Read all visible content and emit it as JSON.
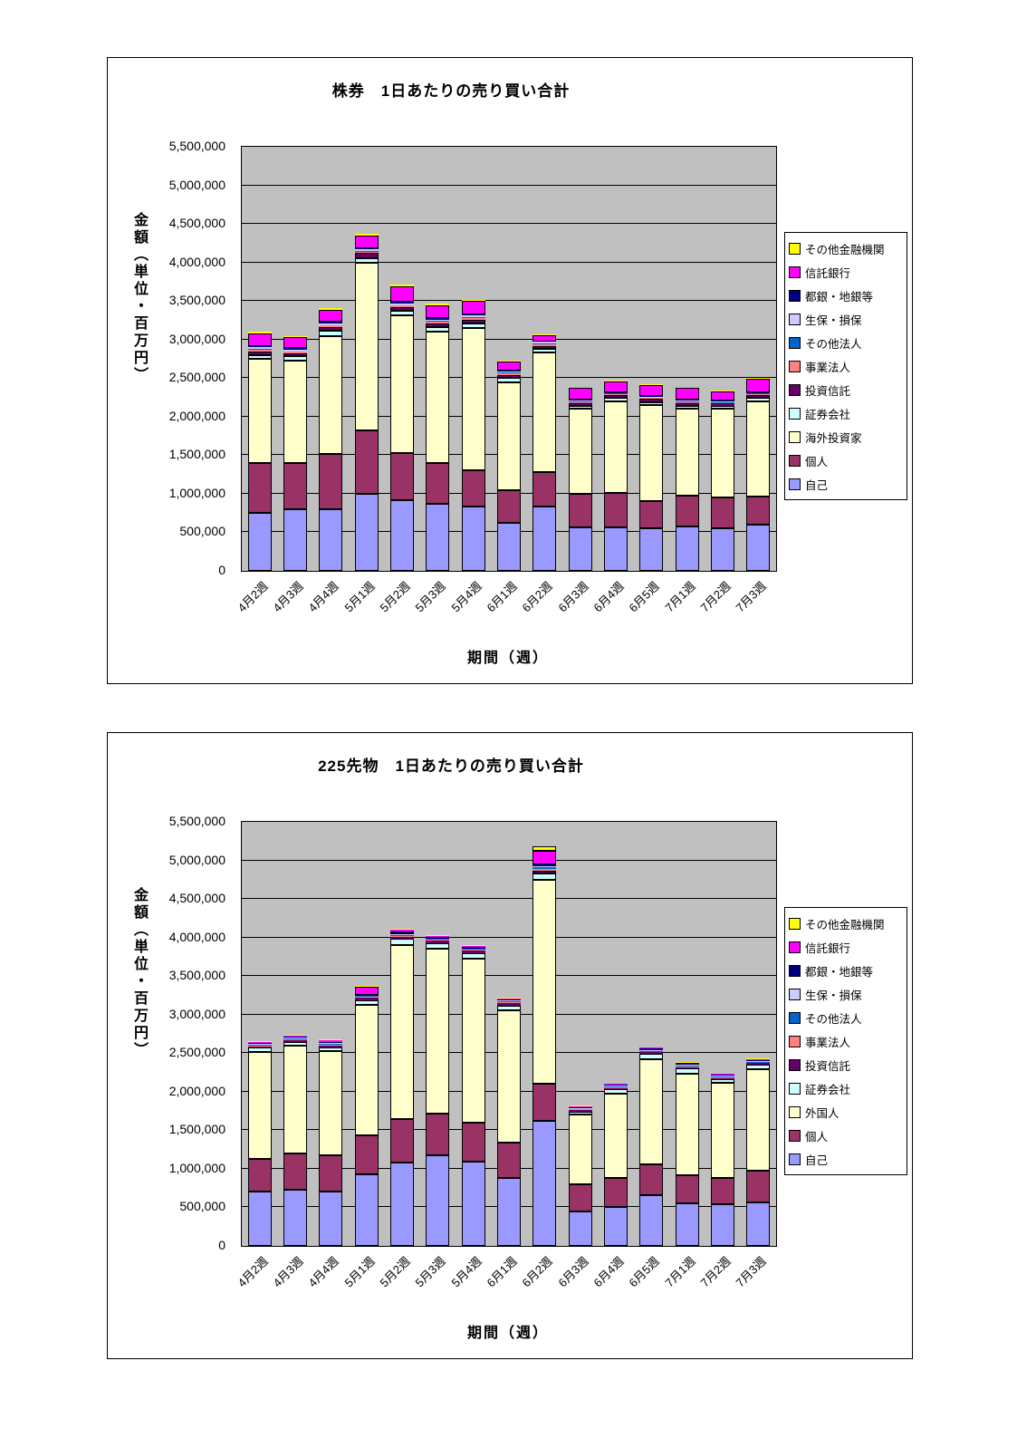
{
  "page": {
    "background": "#FFFFFF"
  },
  "chart_data": [
    {
      "type": "bar",
      "stacked": true,
      "title": "株券　1日あたりの売り買い合計",
      "ylabel": "金額（単位・百万円）",
      "xlabel": "期間（週）",
      "ylim": [
        0,
        5500000
      ],
      "ytick_step": 500000,
      "ytick_labels": [
        "0",
        "500,000",
        "1,000,000",
        "1,500,000",
        "2,000,000",
        "2,500,000",
        "3,000,000",
        "3,500,000",
        "4,000,000",
        "4,500,000",
        "5,000,000",
        "5,500,000"
      ],
      "categories": [
        "4月2週",
        "4月3週",
        "4月4週",
        "5月1週",
        "5月2週",
        "5月3週",
        "5月4週",
        "6月1週",
        "6月2週",
        "6月3週",
        "6月4週",
        "6月5週",
        "7月1週",
        "7月2週",
        "7月3週"
      ],
      "plot_bg": "#C0C0C0",
      "legend_position": "right",
      "series": [
        {
          "name": "自己",
          "color": "#9999FF",
          "values": [
            750000,
            800000,
            800000,
            1000000,
            920000,
            870000,
            830000,
            620000,
            830000,
            570000,
            560000,
            550000,
            580000,
            550000,
            600000
          ]
        },
        {
          "name": "個人",
          "color": "#993366",
          "values": [
            650000,
            600000,
            720000,
            820000,
            610000,
            530000,
            470000,
            430000,
            450000,
            430000,
            450000,
            350000,
            400000,
            400000,
            360000
          ]
        },
        {
          "name": "海外投資家",
          "color": "#FFFFCC",
          "values": [
            1350000,
            1330000,
            1530000,
            2180000,
            1780000,
            1700000,
            1850000,
            1400000,
            1550000,
            1100000,
            1190000,
            1250000,
            1120000,
            1150000,
            1240000
          ]
        },
        {
          "name": "証券会社",
          "color": "#CCFFFF",
          "values": [
            50000,
            50000,
            60000,
            60000,
            60000,
            60000,
            60000,
            50000,
            50000,
            40000,
            40000,
            40000,
            40000,
            40000,
            40000
          ]
        },
        {
          "name": "投資信託",
          "color": "#660066",
          "values": [
            50000,
            40000,
            50000,
            60000,
            50000,
            50000,
            50000,
            40000,
            40000,
            40000,
            40000,
            40000,
            40000,
            30000,
            40000
          ]
        },
        {
          "name": "事業法人",
          "color": "#FF8080",
          "values": [
            20000,
            20000,
            20000,
            20000,
            20000,
            20000,
            20000,
            20000,
            20000,
            10000,
            10000,
            10000,
            10000,
            10000,
            10000
          ]
        },
        {
          "name": "その他法人",
          "color": "#0066CC",
          "values": [
            10000,
            10000,
            10000,
            10000,
            10000,
            10000,
            10000,
            10000,
            10000,
            10000,
            10000,
            10000,
            10000,
            10000,
            10000
          ]
        },
        {
          "name": "生保・損保",
          "color": "#CCCCFF",
          "values": [
            20000,
            20000,
            20000,
            20000,
            20000,
            20000,
            20000,
            20000,
            20000,
            10000,
            10000,
            10000,
            10000,
            10000,
            10000
          ]
        },
        {
          "name": "都銀・地銀等",
          "color": "#000080",
          "values": [
            20000,
            20000,
            20000,
            20000,
            20000,
            20000,
            20000,
            10000,
            10000,
            10000,
            10000,
            10000,
            10000,
            10000,
            10000
          ]
        },
        {
          "name": "信託銀行",
          "color": "#FF00FF",
          "values": [
            160000,
            140000,
            160000,
            160000,
            200000,
            170000,
            170000,
            120000,
            80000,
            150000,
            140000,
            140000,
            150000,
            120000,
            170000
          ]
        },
        {
          "name": "その他金融機関",
          "color": "#FFFF00",
          "values": [
            20000,
            20000,
            20000,
            20000,
            20000,
            20000,
            20000,
            10000,
            10000,
            10000,
            10000,
            10000,
            10000,
            10000,
            10000
          ]
        }
      ]
    },
    {
      "type": "bar",
      "stacked": true,
      "title": "225先物　1日あたりの売り買い合計",
      "ylabel": "金額（単位・百万円）",
      "xlabel": "期間（週）",
      "ylim": [
        0,
        5500000
      ],
      "ytick_step": 500000,
      "ytick_labels": [
        "0",
        "500,000",
        "1,000,000",
        "1,500,000",
        "2,000,000",
        "2,500,000",
        "3,000,000",
        "3,500,000",
        "4,000,000",
        "4,500,000",
        "5,000,000",
        "5,500,000"
      ],
      "categories": [
        "4月2週",
        "4月3週",
        "4月4週",
        "5月1週",
        "5月2週",
        "5月3週",
        "5月4週",
        "6月1週",
        "6月2週",
        "6月3週",
        "6月4週",
        "6月5週",
        "7月1週",
        "7月2週",
        "7月3週"
      ],
      "plot_bg": "#C0C0C0",
      "legend_position": "right",
      "series": [
        {
          "name": "自己",
          "color": "#9999FF",
          "values": [
            700000,
            730000,
            700000,
            930000,
            1080000,
            1180000,
            1090000,
            880000,
            1620000,
            450000,
            510000,
            660000,
            550000,
            540000,
            560000
          ]
        },
        {
          "name": "個人",
          "color": "#993366",
          "values": [
            430000,
            470000,
            480000,
            500000,
            570000,
            540000,
            510000,
            460000,
            480000,
            350000,
            370000,
            400000,
            370000,
            340000,
            410000
          ]
        },
        {
          "name": "外国人",
          "color": "#FFFFCC",
          "values": [
            1390000,
            1400000,
            1350000,
            1700000,
            2250000,
            2130000,
            2120000,
            1710000,
            2650000,
            900000,
            1090000,
            1360000,
            1310000,
            1240000,
            1320000
          ]
        },
        {
          "name": "証券会社",
          "color": "#CCFFFF",
          "values": [
            50000,
            50000,
            50000,
            60000,
            80000,
            80000,
            80000,
            70000,
            80000,
            40000,
            60000,
            70000,
            70000,
            40000,
            60000
          ]
        },
        {
          "name": "投資信託",
          "color": "#660066",
          "values": [
            20000,
            20000,
            20000,
            30000,
            30000,
            30000,
            30000,
            30000,
            40000,
            20000,
            20000,
            20000,
            20000,
            20000,
            20000
          ]
        },
        {
          "name": "事業法人",
          "color": "#FF8080",
          "values": [
            10000,
            10000,
            10000,
            10000,
            10000,
            10000,
            10000,
            10000,
            20000,
            10000,
            10000,
            10000,
            10000,
            10000,
            10000
          ]
        },
        {
          "name": "その他法人",
          "color": "#0066CC",
          "values": [
            10000,
            10000,
            10000,
            10000,
            10000,
            10000,
            10000,
            10000,
            20000,
            10000,
            10000,
            10000,
            10000,
            10000,
            10000
          ]
        },
        {
          "name": "生保・損保",
          "color": "#CCCCFF",
          "values": [
            10000,
            10000,
            10000,
            10000,
            10000,
            10000,
            10000,
            10000,
            20000,
            10000,
            10000,
            10000,
            10000,
            10000,
            10000
          ]
        },
        {
          "name": "都銀・地銀等",
          "color": "#000080",
          "values": [
            10000,
            10000,
            10000,
            10000,
            40000,
            20000,
            20000,
            20000,
            20000,
            10000,
            10000,
            20000,
            20000,
            10000,
            10000
          ]
        },
        {
          "name": "信託銀行",
          "color": "#FF00FF",
          "values": [
            20000,
            20000,
            30000,
            100000,
            20000,
            10000,
            10000,
            10000,
            170000,
            10000,
            10000,
            10000,
            10000,
            10000,
            10000
          ]
        },
        {
          "name": "その他金融機関",
          "color": "#FFFF00",
          "values": [
            10000,
            10000,
            10000,
            20000,
            10000,
            10000,
            10000,
            10000,
            60000,
            10000,
            10000,
            10000,
            10000,
            10000,
            10000
          ]
        }
      ]
    }
  ]
}
